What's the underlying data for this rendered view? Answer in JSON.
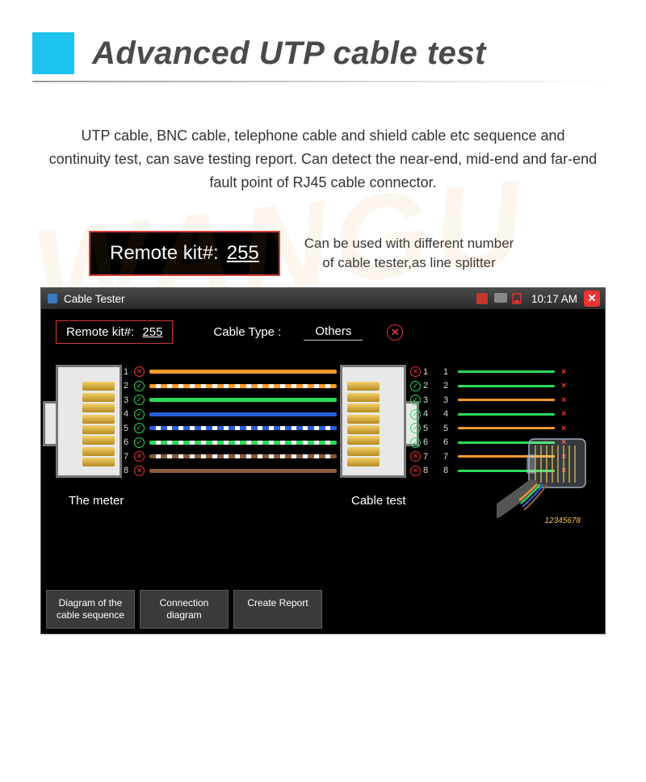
{
  "header": {
    "title": "Advanced UTP cable test",
    "square_color": "#1cc3ed"
  },
  "description": "UTP cable, BNC cable, telephone cable and shield cable etc sequence and continuity test, can save testing report. Can detect the near-end, mid-end and far-end fault point of RJ45 cable connector.",
  "callout": {
    "remote_label": "Remote kit#:",
    "remote_value": "255",
    "text_line1": "Can be used with different number",
    "text_line2": "of cable tester,as line splitter"
  },
  "device": {
    "title": "Cable Tester",
    "time": "10:17 AM",
    "remote_label": "Remote kit#:",
    "remote_value": "255",
    "cable_type_label": "Cable Type :",
    "cable_type_value": "Others",
    "meter_label": "The meter",
    "test_label": "Cable test",
    "rj45_label": "12345678",
    "buttons": {
      "btn1": "Diagram of the\ncable sequence",
      "btn2": "Connection\ndiagram",
      "btn3": "Create Report"
    },
    "wires": [
      {
        "n": "1",
        "color": "#ff9a2e",
        "status": "bad",
        "mid": "solid",
        "result_color": "#2bdc5a",
        "result": "x"
      },
      {
        "n": "2",
        "color": "#ff9a2e",
        "status": "ok",
        "mid": "dash",
        "result_color": "#2bdc5a",
        "result": "x"
      },
      {
        "n": "3",
        "color": "#2bdc5a",
        "status": "ok",
        "mid": "solid",
        "result_color": "#ff9a2e",
        "result": "x"
      },
      {
        "n": "4",
        "color": "#2b5fd9",
        "status": "ok",
        "mid": "solid",
        "result_color": "#2bdc5a",
        "result": "x"
      },
      {
        "n": "5",
        "color": "#2b5fd9",
        "status": "ok",
        "mid": "dash",
        "result_color": "#ff9a2e",
        "result": "x"
      },
      {
        "n": "6",
        "color": "#2bdc5a",
        "status": "ok",
        "mid": "dash",
        "result_color": "#2bdc5a",
        "result": "x"
      },
      {
        "n": "7",
        "color": "#8a5a3a",
        "status": "bad",
        "mid": "dash",
        "result_color": "#ff9a2e",
        "result": "x"
      },
      {
        "n": "8",
        "color": "#8a5a3a",
        "status": "bad",
        "mid": "solid",
        "result_color": "#2bdc5a",
        "result": "x"
      }
    ]
  }
}
